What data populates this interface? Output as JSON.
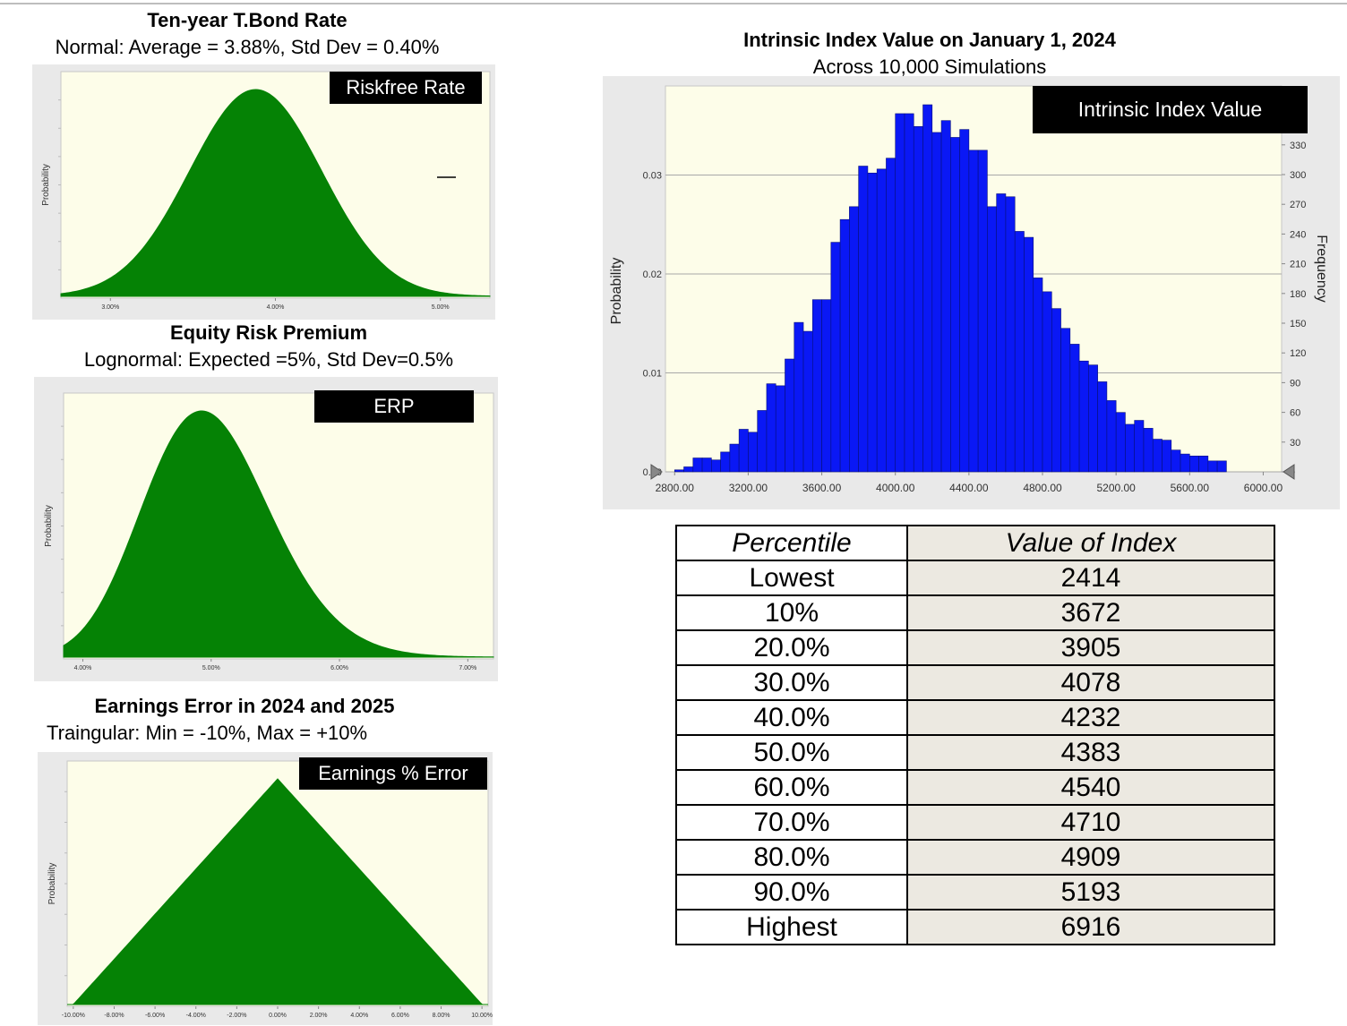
{
  "colors": {
    "green_fill": "#058205",
    "blue_bar": "#0a18f5",
    "plot_bg": "#fdfde9",
    "panel_bg": "#e9e9e9"
  },
  "panels": {
    "bond": {
      "title": "Ten-year T.Bond Rate",
      "subtitle": "Normal: Average = 3.88%, Std Dev = 0.40%",
      "label": "Riskfree Rate",
      "axis_label": "Probability"
    },
    "erp": {
      "title": "Equity Risk Premium",
      "subtitle": "Lognormal: Expected =5%, Std Dev=0.5%",
      "label": "ERP",
      "axis_label": "Probability"
    },
    "earn": {
      "title": "Earnings Error in 2024 and 2025",
      "subtitle": "Traingular: Min = -10%, Max = +10%",
      "label": "Earnings % Error",
      "axis_label": "Probability"
    },
    "sim": {
      "title": "Intrinsic Index Value on January 1, 2024",
      "subtitle": "Across 10,000 Simulations",
      "label": "Intrinsic Index Value",
      "y_left_label": "Probability",
      "y_right_label": "Frequency"
    }
  },
  "chart_data": [
    {
      "type": "area",
      "distribution": "normal",
      "mean": 3.88,
      "std": 0.4,
      "x_ticks": [
        "3.00%",
        "4.00%",
        "5.00%"
      ],
      "x_tick_values": [
        3.0,
        4.0,
        5.0
      ],
      "xlim": [
        2.7,
        5.3
      ]
    },
    {
      "type": "area",
      "distribution": "lognormal",
      "mean": 5.0,
      "std": 0.5,
      "x_ticks": [
        "4.00%",
        "5.00%",
        "6.00%",
        "7.00%"
      ],
      "x_tick_values": [
        4.0,
        5.0,
        6.0,
        7.0
      ],
      "xlim": [
        3.85,
        7.2
      ]
    },
    {
      "type": "area",
      "distribution": "triangular",
      "min": -10,
      "mode": 0,
      "max": 10,
      "x_ticks": [
        "-10.00%",
        "-8.00%",
        "-6.00%",
        "-4.00%",
        "-2.00%",
        "0.00%",
        "2.00%",
        "4.00%",
        "6.00%",
        "8.00%",
        "10.00%"
      ],
      "x_tick_values": [
        -10,
        -8,
        -6,
        -4,
        -2,
        0,
        2,
        4,
        6,
        8,
        10
      ],
      "xlim": [
        -10.3,
        10.3
      ]
    },
    {
      "type": "bar",
      "bin_start": 2800,
      "bin_width": 50,
      "values": [
        0.0002,
        0.0005,
        0.0014,
        0.0014,
        0.0012,
        0.002,
        0.0028,
        0.0043,
        0.004,
        0.0062,
        0.0089,
        0.0087,
        0.0114,
        0.0151,
        0.0142,
        0.0174,
        0.0174,
        0.0232,
        0.0255,
        0.0268,
        0.0309,
        0.0302,
        0.0306,
        0.0317,
        0.0362,
        0.0362,
        0.0349,
        0.0371,
        0.0343,
        0.0355,
        0.0338,
        0.0346,
        0.0325,
        0.0325,
        0.0268,
        0.0281,
        0.0278,
        0.0243,
        0.0237,
        0.0196,
        0.0182,
        0.0165,
        0.0145,
        0.0129,
        0.0112,
        0.0108,
        0.0091,
        0.0072,
        0.006,
        0.0048,
        0.0052,
        0.0044,
        0.0033,
        0.0032,
        0.0022,
        0.0018,
        0.0016,
        0.0016,
        0.0011,
        0.0011
      ],
      "xlim": [
        2750,
        6100
      ],
      "ylim": [
        0,
        0.039
      ],
      "y_ticks": [
        "0.00",
        "0.01",
        "0.02",
        "0.03"
      ],
      "y_tick_values": [
        0,
        0.01,
        0.02,
        0.03
      ],
      "y2_ticks": [
        "0",
        "30",
        "60",
        "90",
        "120",
        "150",
        "180",
        "210",
        "240",
        "270",
        "300",
        "330"
      ],
      "x_ticks": [
        "2800.00",
        "3200.00",
        "3600.00",
        "4000.00",
        "4400.00",
        "4800.00",
        "5200.00",
        "5600.00",
        "6000.00"
      ],
      "x_tick_values": [
        2800,
        3200,
        3600,
        4000,
        4400,
        4800,
        5200,
        5600,
        6000
      ],
      "grid": true
    }
  ],
  "table": {
    "headers": [
      "Percentile",
      "Value of Index"
    ],
    "rows": [
      [
        "Lowest",
        "2414"
      ],
      [
        "10%",
        "3672"
      ],
      [
        "20.0%",
        "3905"
      ],
      [
        "30.0%",
        "4078"
      ],
      [
        "40.0%",
        "4232"
      ],
      [
        "50.0%",
        "4383"
      ],
      [
        "60.0%",
        "4540"
      ],
      [
        "70.0%",
        "4710"
      ],
      [
        "80.0%",
        "4909"
      ],
      [
        "90.0%",
        "5193"
      ],
      [
        "Highest",
        "6916"
      ]
    ]
  }
}
